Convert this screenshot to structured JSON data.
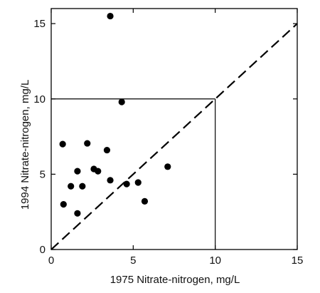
{
  "chart_data": {
    "type": "scatter",
    "xlabel": "1975 Nitrate-nitrogen, mg/L",
    "ylabel": "1994 Nitrate-nitrogen, mg/L",
    "xlim": [
      0,
      15
    ],
    "ylim": [
      0,
      16
    ],
    "xticks": [
      0,
      5,
      10,
      15
    ],
    "yticks": [
      0,
      5,
      10,
      15
    ],
    "grid": false,
    "point_color": "#000000",
    "reference_line": {
      "type": "1:1",
      "style": "dashed",
      "from": [
        0,
        0
      ],
      "to": [
        15,
        15
      ]
    },
    "threshold": {
      "value": 10,
      "style": "solid",
      "description": "lines at 10 mg/L on both axes"
    },
    "points": [
      {
        "x": 3.6,
        "y": 15.5
      },
      {
        "x": 4.3,
        "y": 9.8
      },
      {
        "x": 0.7,
        "y": 7.0
      },
      {
        "x": 2.2,
        "y": 7.05
      },
      {
        "x": 3.4,
        "y": 6.6
      },
      {
        "x": 7.1,
        "y": 5.5
      },
      {
        "x": 2.6,
        "y": 5.35
      },
      {
        "x": 2.85,
        "y": 5.2
      },
      {
        "x": 1.6,
        "y": 5.2
      },
      {
        "x": 3.6,
        "y": 4.6
      },
      {
        "x": 4.6,
        "y": 4.35
      },
      {
        "x": 5.3,
        "y": 4.45
      },
      {
        "x": 1.2,
        "y": 4.2
      },
      {
        "x": 1.9,
        "y": 4.2
      },
      {
        "x": 5.7,
        "y": 3.2
      },
      {
        "x": 0.75,
        "y": 3.0
      },
      {
        "x": 1.6,
        "y": 2.4
      }
    ]
  }
}
